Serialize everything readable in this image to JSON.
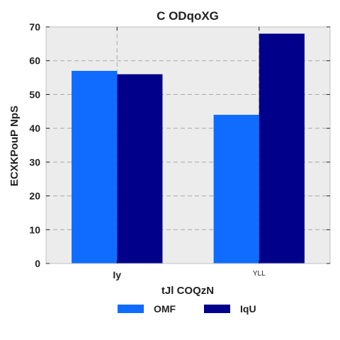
{
  "chart_data": {
    "type": "bar",
    "title": "C ODqoXG",
    "xlabel": "tJl COQzN",
    "ylabel": "ECXKPouP NpS",
    "categories": [
      "Iy",
      "YLL"
    ],
    "category_label_styles": [
      "bold",
      "small"
    ],
    "series": [
      {
        "name": "OMF",
        "color": "#0f6cff",
        "values": [
          57,
          44
        ]
      },
      {
        "name": "IqU",
        "color": "#00008b",
        "values": [
          56,
          68
        ]
      }
    ],
    "ylim": [
      0,
      70
    ],
    "yticks": [
      0,
      10,
      20,
      30,
      40,
      50,
      60,
      70
    ],
    "grid": true,
    "background_color": "#ececec",
    "legend_position": "bottom-center"
  }
}
